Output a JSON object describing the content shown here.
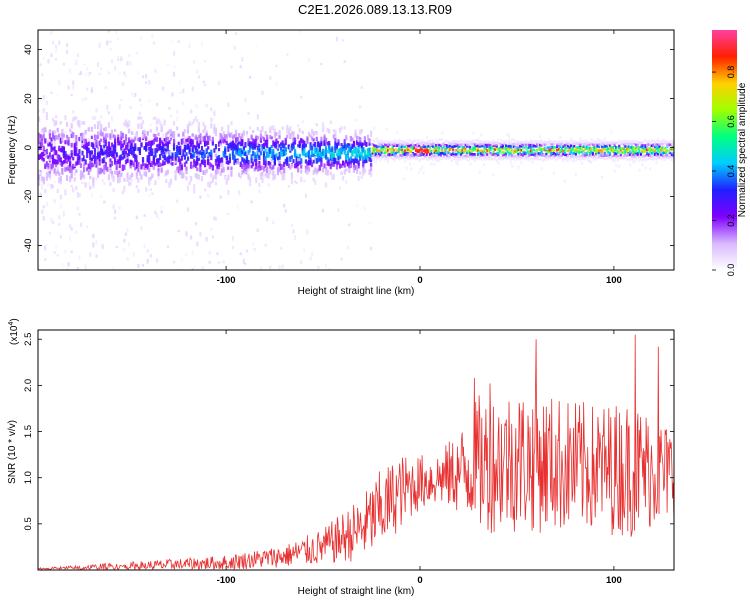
{
  "title": "C2E1.2026.089.13.13.R09",
  "chart_data": [
    {
      "type": "heatmap",
      "name": "spectrogram",
      "xlabel": "Height of straight line (km)",
      "ylabel": "Frequency (Hz)",
      "xlim": [
        -197,
        131
      ],
      "ylim": [
        -50,
        48
      ],
      "xticks": [
        -100,
        0,
        100
      ],
      "yticks": [
        -40,
        -20,
        0,
        20,
        40
      ],
      "colorbar": {
        "label": "Normalized spectral amplitude",
        "range": [
          0,
          0.97
        ],
        "ticks": [
          0.0,
          0.2,
          0.4,
          0.6,
          0.8
        ],
        "tick_labels": [
          "0.0",
          "0.2",
          "0.4",
          "0.6",
          "0.8"
        ],
        "colormap": [
          "#ffffff",
          "#d8b8ff",
          "#8000ff",
          "#2020ff",
          "#00ccff",
          "#00ff80",
          "#a0ff00",
          "#ffd000",
          "#ff2000",
          "#ff40a0"
        ]
      },
      "features": [
        {
          "label": "broad noisy band",
          "x_range": [
            -197,
            -25
          ],
          "center_hz": -2,
          "halfwidth_hz": 8
        },
        {
          "label": "narrow strong line",
          "x_range": [
            -25,
            131
          ],
          "center_hz": -1,
          "halfwidth_hz": 3,
          "peak_amplitude": 0.9
        }
      ]
    },
    {
      "type": "line",
      "name": "snr",
      "xlabel": "Height of straight line (km)",
      "ylabel": "SNR (10 * v/v)",
      "y_multiplier": "(x10",
      "y_multiplier_exp": "4",
      "y_multiplier_close": ")",
      "xlim": [
        -197,
        131
      ],
      "ylim": [
        0,
        2.6
      ],
      "xticks": [
        -100,
        0,
        100
      ],
      "yticks": [
        0.5,
        1.0,
        1.5,
        2.0,
        2.5
      ],
      "series": [
        {
          "name": "SNR",
          "color": "#e83030",
          "envelope": {
            "x": [
              -197,
              -150,
              -100,
              -70,
              -50,
              -30,
              -20,
              -10,
              0,
              10,
              20,
              30,
              50,
              70,
              90,
              110,
              131
            ],
            "mean": [
              0.01,
              0.04,
              0.08,
              0.15,
              0.25,
              0.45,
              0.65,
              0.85,
              0.95,
              1.0,
              1.05,
              1.15,
              1.2,
              1.15,
              1.1,
              1.1,
              1.05
            ],
            "spread": [
              0.01,
              0.05,
              0.08,
              0.12,
              0.2,
              0.35,
              0.45,
              0.4,
              0.3,
              0.3,
              0.45,
              0.75,
              0.8,
              0.75,
              0.7,
              0.75,
              0.5
            ]
          },
          "peaks": [
            {
              "x": 60,
              "y": 2.5
            },
            {
              "x": 111,
              "y": 2.55
            },
            {
              "x": 123,
              "y": 2.42
            },
            {
              "x": 28,
              "y": 2.08
            },
            {
              "x": 36,
              "y": 2.02
            }
          ]
        }
      ]
    }
  ]
}
